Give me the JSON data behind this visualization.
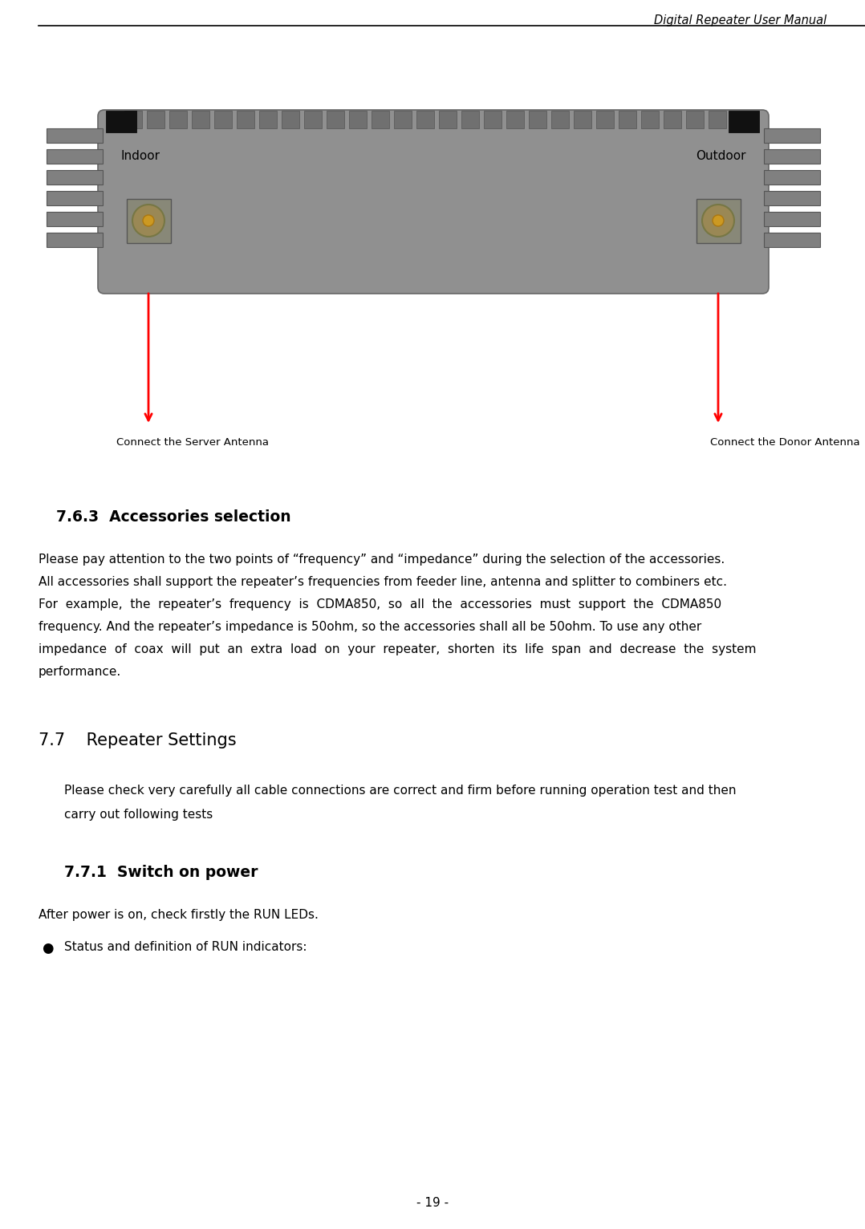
{
  "header_text": "Digital Repeater User Manual",
  "footer_text": "- 19 -",
  "section_763_title": "7.6.3  Accessories selection",
  "section_763_body": [
    "Please pay attention to the two points of “frequency” and “impedance” during the selection of the accessories.",
    "All accessories shall support the repeater’s frequencies from feeder line, antenna and splitter to combiners etc.",
    "For  example,  the  repeater’s  frequency  is  CDMA850,  so  all  the  accessories  must  support  the  CDMA850",
    "frequency. And the repeater’s impedance is 50ohm, so the accessories shall all be 50ohm. To use any other",
    "impedance  of  coax  will  put  an  extra  load  on  your  repeater,  shorten  its  life  span  and  decrease  the  system",
    "performance."
  ],
  "section_77_title": "7.7    Repeater Settings",
  "section_77_body_1": "Please check very carefully all cable connections are correct and firm before running operation test and then",
  "section_77_body_2": "carry out following tests",
  "section_771_title": "7.7.1  Switch on power",
  "section_771_body": "After power is on, check firstly the RUN LEDs.",
  "bullet_text": "Status and definition of RUN indicators:",
  "label_left": "Connect the Server Antenna",
  "label_right": "Connect the Donor Antenna",
  "bg_color": "#ffffff",
  "text_color": "#000000"
}
